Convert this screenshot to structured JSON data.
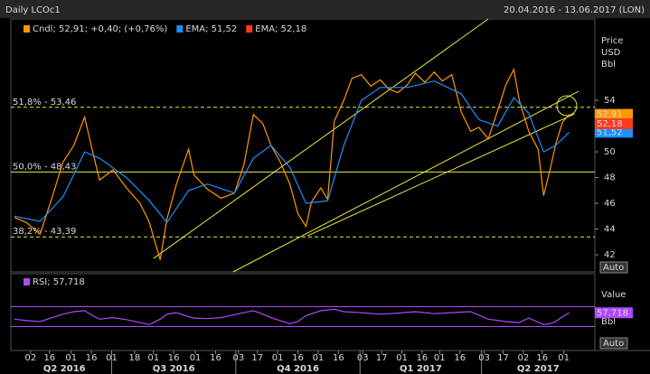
{
  "header": {
    "title": "Daily LCOc1",
    "range": "20.04.2016 - 13.06.2017 (LON)"
  },
  "chart_data": [
    {
      "type": "line",
      "xlim": [
        0,
        430
      ],
      "ylim": [
        40.67,
        60.32
      ],
      "yticks": [
        42,
        44,
        46,
        48,
        50,
        52,
        54
      ],
      "y_unit": [
        "Price",
        "USD",
        "Bbl"
      ],
      "button": "Auto",
      "series": [
        {
          "legend": "Cndl; 52,91; +0,40; (+0,76%)",
          "color": "#ff9900",
          "last": 52.91,
          "last_label": "52,91",
          "x": [
            0,
            9,
            19,
            28,
            36,
            44,
            52,
            58,
            63,
            73,
            83,
            93,
            100,
            108,
            113,
            120,
            129,
            133,
            143,
            153,
            163,
            170,
            177,
            184,
            190,
            197,
            204,
            210,
            216,
            220,
            227,
            232,
            237,
            244,
            250,
            257,
            264,
            271,
            277,
            284,
            291,
            297,
            304,
            311,
            317,
            324,
            331,
            338,
            344,
            351,
            358,
            364,
            370,
            374,
            381,
            388,
            392,
            397,
            401,
            406,
            411
          ],
          "values": [
            44.9,
            44.5,
            43.6,
            46.5,
            49.2,
            50.5,
            52.7,
            50,
            47.8,
            48.6,
            47.2,
            46,
            44.5,
            41.6,
            44.8,
            47.5,
            50.2,
            48.2,
            47.1,
            46.4,
            46.8,
            49,
            52.9,
            52.2,
            50.5,
            49.2,
            47.5,
            45.2,
            44.2,
            46.1,
            47.2,
            46.3,
            52.4,
            54,
            55.7,
            56,
            55.1,
            55.6,
            54.9,
            54.6,
            55.2,
            56.1,
            55.4,
            56.2,
            55.5,
            56,
            53.1,
            51.6,
            51.9,
            51,
            53.2,
            55.2,
            56.4,
            54,
            51.6,
            50.2,
            46.6,
            48.7,
            50.6,
            52.3,
            52.91
          ]
        },
        {
          "legend": "EMA; 51,52",
          "color": "#1e90ff",
          "last": 51.52,
          "last_label": "51,52",
          "x": [
            0,
            19,
            36,
            52,
            63,
            83,
            100,
            113,
            129,
            143,
            163,
            177,
            190,
            204,
            216,
            232,
            244,
            257,
            271,
            291,
            311,
            331,
            344,
            358,
            370,
            381,
            392,
            401,
            411
          ],
          "values": [
            45,
            44.6,
            46.5,
            50,
            49.5,
            48,
            46.2,
            44.5,
            47,
            47.5,
            46.8,
            49.5,
            50.5,
            48.8,
            46,
            46.2,
            50.5,
            54,
            55,
            55,
            55.5,
            54.5,
            52.5,
            52,
            54.2,
            53,
            50,
            50.5,
            51.52
          ]
        },
        {
          "legend": "EMA; 52,18",
          "color": "#ff3b1f",
          "last": 52.18,
          "last_label": "52,18"
        }
      ],
      "levels": [
        {
          "value": 53.46,
          "label": "51,8% - 53,46",
          "dashed": true
        },
        {
          "value": 48.43,
          "label": "50,0% - 48,43",
          "dashed": false
        },
        {
          "value": 43.39,
          "label": "38,2% - 43,39",
          "dashed": true
        }
      ],
      "trendlines": [
        {
          "x": [
            103,
            351
          ],
          "y": [
            41.72,
            60.32
          ]
        },
        {
          "x": [
            162,
            418
          ],
          "y": [
            40.67,
            54.7
          ]
        },
        {
          "x": [
            217,
            415
          ],
          "y": [
            43.47,
            52.95
          ]
        }
      ],
      "line_color": "#e8e840"
    },
    {
      "type": "line",
      "xlim": [
        0,
        430
      ],
      "ylim": [
        0,
        100
      ],
      "bands": [
        70,
        30
      ],
      "y_unit": [
        "Value",
        "Bbl"
      ],
      "button": "Auto",
      "series": [
        {
          "legend": "RSI; 57,718",
          "color": "#b048ff",
          "last": 57.718,
          "last_label": "57,718",
          "x": [
            0,
            9,
            19,
            28,
            36,
            44,
            52,
            58,
            63,
            73,
            83,
            93,
            100,
            108,
            113,
            120,
            129,
            133,
            143,
            153,
            170,
            177,
            184,
            190,
            197,
            204,
            210,
            216,
            227,
            237,
            244,
            257,
            271,
            284,
            297,
            311,
            324,
            338,
            351,
            364,
            374,
            381,
            392,
            397,
            401,
            406,
            411
          ],
          "values": [
            45,
            42,
            40,
            48,
            55,
            60,
            62,
            52,
            45,
            48,
            44,
            38,
            34,
            45,
            55,
            58,
            50,
            47,
            46,
            48,
            58,
            62,
            55,
            48,
            42,
            36,
            40,
            52,
            62,
            65,
            60,
            58,
            55,
            57,
            60,
            56,
            58,
            60,
            45,
            40,
            38,
            47,
            34,
            36,
            40,
            50,
            57.718
          ]
        }
      ],
      "xticks": [
        {
          "value": 12,
          "label": "02"
        },
        {
          "value": 26,
          "label": "16"
        },
        {
          "value": 42,
          "label": "01"
        },
        {
          "value": 57,
          "label": "16"
        },
        {
          "value": 72,
          "label": "01"
        },
        {
          "value": 89,
          "label": "18"
        },
        {
          "value": 103,
          "label": "01"
        },
        {
          "value": 118,
          "label": "16"
        },
        {
          "value": 134,
          "label": "01"
        },
        {
          "value": 149,
          "label": "16"
        },
        {
          "value": 166,
          "label": "03"
        },
        {
          "value": 180,
          "label": "17"
        },
        {
          "value": 195,
          "label": "01"
        },
        {
          "value": 210,
          "label": "16"
        },
        {
          "value": 225,
          "label": "01"
        },
        {
          "value": 240,
          "label": "16"
        },
        {
          "value": 258,
          "label": "03"
        },
        {
          "value": 272,
          "label": "17"
        },
        {
          "value": 287,
          "label": "01"
        },
        {
          "value": 302,
          "label": "16"
        },
        {
          "value": 315,
          "label": "01"
        },
        {
          "value": 330,
          "label": "16"
        },
        {
          "value": 348,
          "label": "03"
        },
        {
          "value": 362,
          "label": "17"
        },
        {
          "value": 377,
          "label": "02"
        },
        {
          "value": 391,
          "label": "16"
        },
        {
          "value": 407,
          "label": "01"
        }
      ],
      "quarters": [
        {
          "value": 37,
          "label": "Q2 2016"
        },
        {
          "value": 118,
          "label": "Q3 2016"
        },
        {
          "value": 210,
          "label": "Q4 2016"
        },
        {
          "value": 301,
          "label": "Q1 2017"
        },
        {
          "value": 388,
          "label": "Q2 2017"
        }
      ],
      "quarter_bounds": [
        72,
        164,
        256,
        346
      ]
    }
  ]
}
